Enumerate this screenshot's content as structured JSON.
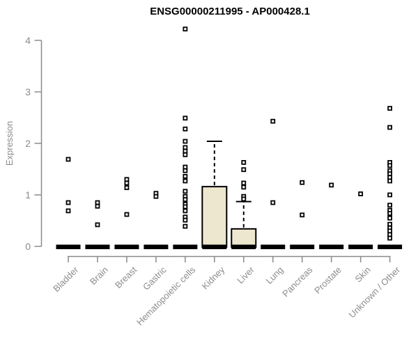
{
  "chart_data": {
    "type": "boxplot",
    "title": "ENSG00000211995 - AP000428.1",
    "ylabel": "Expression",
    "xlabel": "",
    "ylim": [
      0,
      4
    ],
    "yticks": [
      0,
      1,
      2,
      3,
      4
    ],
    "grid": false,
    "legend": "none",
    "categories": [
      "Bladder",
      "Brain",
      "Breast",
      "Gastric",
      "Hematopoietic cells",
      "Kidney",
      "Liver",
      "Lung",
      "Pancreas",
      "Prostate",
      "Skin",
      "Unknown / Other"
    ],
    "series": [
      {
        "category": "Bladder",
        "median": 0,
        "q1": 0,
        "q3": 0,
        "whisker_low": 0,
        "whisker_high": 0,
        "points": [
          1.69,
          0.85,
          0.69
        ]
      },
      {
        "category": "Brain",
        "median": 0,
        "q1": 0,
        "q3": 0,
        "whisker_low": 0,
        "whisker_high": 0,
        "points": [
          0.85,
          0.78,
          0.42
        ]
      },
      {
        "category": "Breast",
        "median": 0,
        "q1": 0,
        "q3": 0,
        "whisker_low": 0,
        "whisker_high": 0,
        "points": [
          1.3,
          1.23,
          1.14,
          0.62
        ]
      },
      {
        "category": "Gastric",
        "median": 0,
        "q1": 0,
        "q3": 0,
        "whisker_low": 0,
        "whisker_high": 0,
        "points": [
          1.03,
          0.97
        ]
      },
      {
        "category": "Hematopoietic cells",
        "median": 0,
        "q1": 0,
        "q3": 0,
        "whisker_low": 0,
        "whisker_high": 0,
        "points": [
          4.22,
          2.49,
          2.28,
          2.04,
          1.92,
          1.85,
          1.78,
          1.54,
          1.47,
          1.36,
          1.27,
          1.07,
          0.97,
          0.91,
          0.82,
          0.77,
          0.69,
          0.57,
          0.51,
          0.39
        ]
      },
      {
        "category": "Kidney",
        "median": 0,
        "q1": 0,
        "q3": 1.16,
        "whisker_low": 0,
        "whisker_high": 2.04,
        "points": []
      },
      {
        "category": "Liver",
        "median": 0,
        "q1": 0,
        "q3": 0.34,
        "whisker_low": 0,
        "whisker_high": 0.87,
        "points": [
          1.63,
          1.49,
          1.23,
          1.15,
          0.97,
          0.92
        ]
      },
      {
        "category": "Lung",
        "median": 0,
        "q1": 0,
        "q3": 0,
        "whisker_low": 0,
        "whisker_high": 0,
        "points": [
          2.43,
          0.85
        ]
      },
      {
        "category": "Pancreas",
        "median": 0,
        "q1": 0,
        "q3": 0,
        "whisker_low": 0,
        "whisker_high": 0,
        "points": [
          1.24,
          0.61
        ]
      },
      {
        "category": "Prostate",
        "median": 0,
        "q1": 0,
        "q3": 0,
        "whisker_low": 0,
        "whisker_high": 0,
        "points": [
          1.19
        ]
      },
      {
        "category": "Skin",
        "median": 0,
        "q1": 0,
        "q3": 0,
        "whisker_low": 0,
        "whisker_high": 0,
        "points": [
          1.02
        ]
      },
      {
        "category": "Unknown / Other",
        "median": 0,
        "q1": 0,
        "q3": 0,
        "whisker_low": 0,
        "whisker_high": 0,
        "points": [
          2.68,
          2.31,
          1.63,
          1.57,
          1.47,
          1.41,
          1.34,
          1.27,
          1.0,
          0.8,
          0.7,
          0.64,
          0.55,
          0.43,
          0.36,
          0.3,
          0.23,
          0.16
        ]
      }
    ],
    "colors": {
      "box_fill": "#ede7d0",
      "box_border": "#000000",
      "median_bar": "#000000",
      "point_stroke": "#000000",
      "point_fill": "#ffffff",
      "axis": "#8a8a8a",
      "tick_label": "#8c8c8c",
      "title": "#000000"
    }
  }
}
